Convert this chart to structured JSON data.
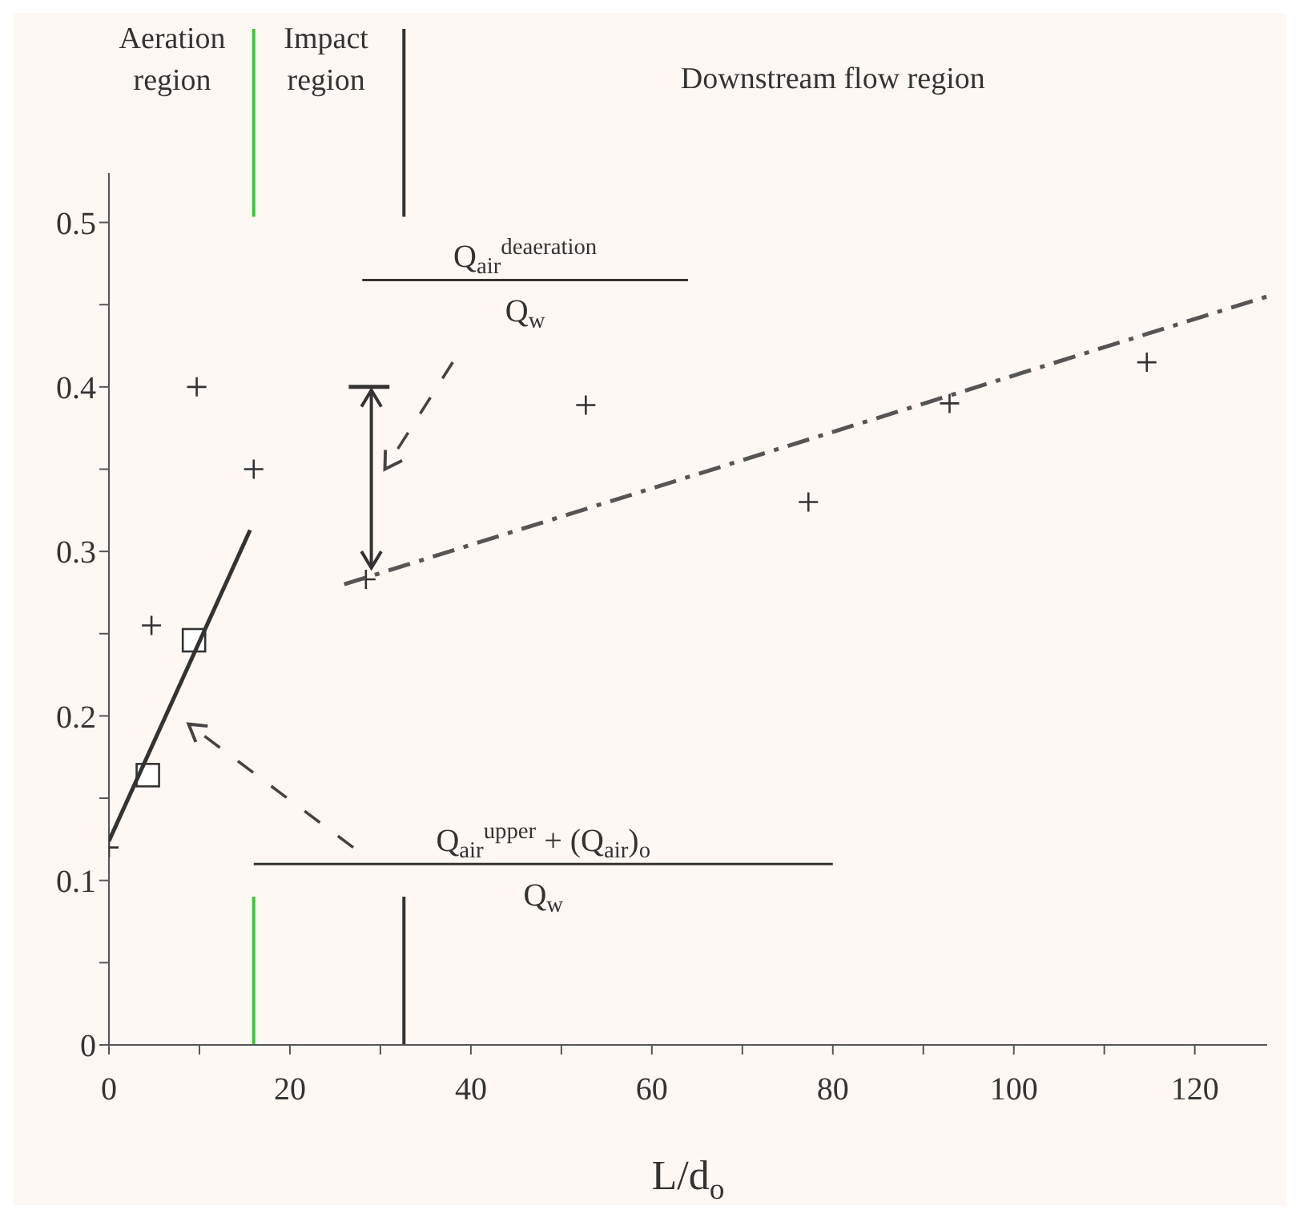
{
  "chart_data": {
    "type": "scatter",
    "xlabel": "L/d$_{o}$",
    "xlim": [
      0,
      128
    ],
    "ylim": [
      0,
      0.53
    ],
    "xticks": [
      0,
      {
        "value": 10,
        "label": null
      },
      20,
      {
        "value": 30,
        "label": null
      },
      40,
      {
        "value": 50,
        "label": null
      },
      60,
      {
        "value": 70,
        "label": null
      },
      80,
      {
        "value": 90,
        "label": null
      },
      100,
      {
        "value": 110,
        "label": null
      },
      120
    ],
    "yticks": [
      0,
      {
        "value": 0.05,
        "label": null
      },
      0.1,
      {
        "value": 0.15,
        "label": null
      },
      0.2,
      {
        "value": 0.25,
        "label": null
      },
      0.3,
      {
        "value": 0.35,
        "label": null
      },
      0.4,
      {
        "value": 0.45,
        "label": null
      },
      0.5
    ],
    "grid": false,
    "legend": false,
    "series": [
      {
        "marker": "cross",
        "color": "#333333",
        "x": [
          0,
          4.7,
          9.7,
          16,
          28.4,
          52.7,
          77.3,
          92.9,
          114.7
        ],
        "values": [
          0.12,
          0.255,
          0.4,
          0.35,
          0.283,
          0.389,
          0.33,
          0.39,
          0.415
        ]
      },
      {
        "marker": "square",
        "color": "#333333",
        "x": [
          4.3,
          9.4
        ],
        "values": [
          0.164,
          0.246
        ]
      },
      {
        "type": "line",
        "line_style": "solid",
        "color": "#333333",
        "x": [
          0,
          15.6
        ],
        "values": [
          0.124,
          0.313
        ]
      },
      {
        "type": "line",
        "line_style": "dashed",
        "color": "#555555",
        "x": [
          26,
          128
        ],
        "values": [
          0.28,
          0.455
        ]
      }
    ],
    "ref_lines": [
      {
        "axis": "x",
        "value": 16,
        "color": "#33cc33"
      },
      {
        "axis": "x",
        "value": 32.6,
        "color": "#333333"
      }
    ],
    "annotations": [
      "Aeration region",
      "Impact region",
      "Downstream flow region",
      "Q$_{air}$$^{deaeration}$",
      "Q$_{w}$",
      "Q$_{air}$$^{upper}$ + (Q$_{air}$)$_{o}$",
      "Q$_{w}$"
    ]
  }
}
